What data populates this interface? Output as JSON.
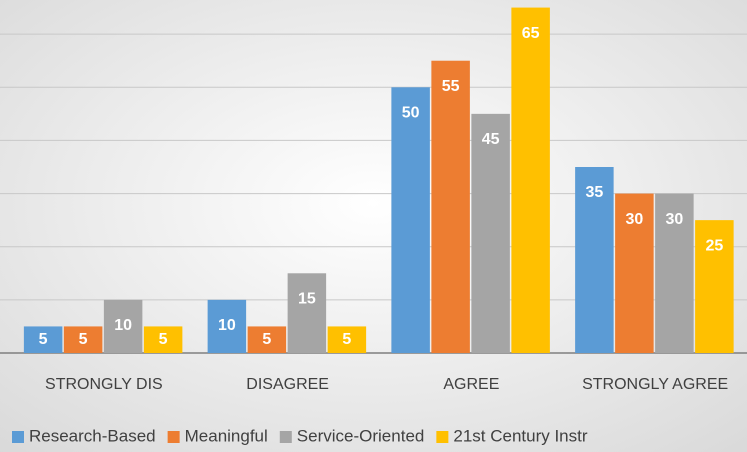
{
  "chart_data": {
    "type": "bar",
    "categories": [
      "STRONGLY DIS",
      "DISAGREE",
      "AGREE",
      "STRONGLY AGREE"
    ],
    "series": [
      {
        "name": "Research-Based",
        "color": "#5b9bd5",
        "values": [
          5,
          10,
          50,
          35
        ]
      },
      {
        "name": "Meaningful",
        "color": "#ed7d31",
        "values": [
          5,
          5,
          55,
          30
        ]
      },
      {
        "name": "Service-Oriented",
        "color": "#a5a5a5",
        "values": [
          10,
          15,
          45,
          30
        ]
      },
      {
        "name": "21st Century Instr",
        "color": "#ffc000",
        "values": [
          5,
          5,
          65,
          25
        ]
      }
    ],
    "ylim": [
      0,
      70
    ],
    "yticks": [
      0,
      10,
      20,
      30,
      40,
      50,
      60
    ],
    "grid": true,
    "legend": "bottom"
  }
}
